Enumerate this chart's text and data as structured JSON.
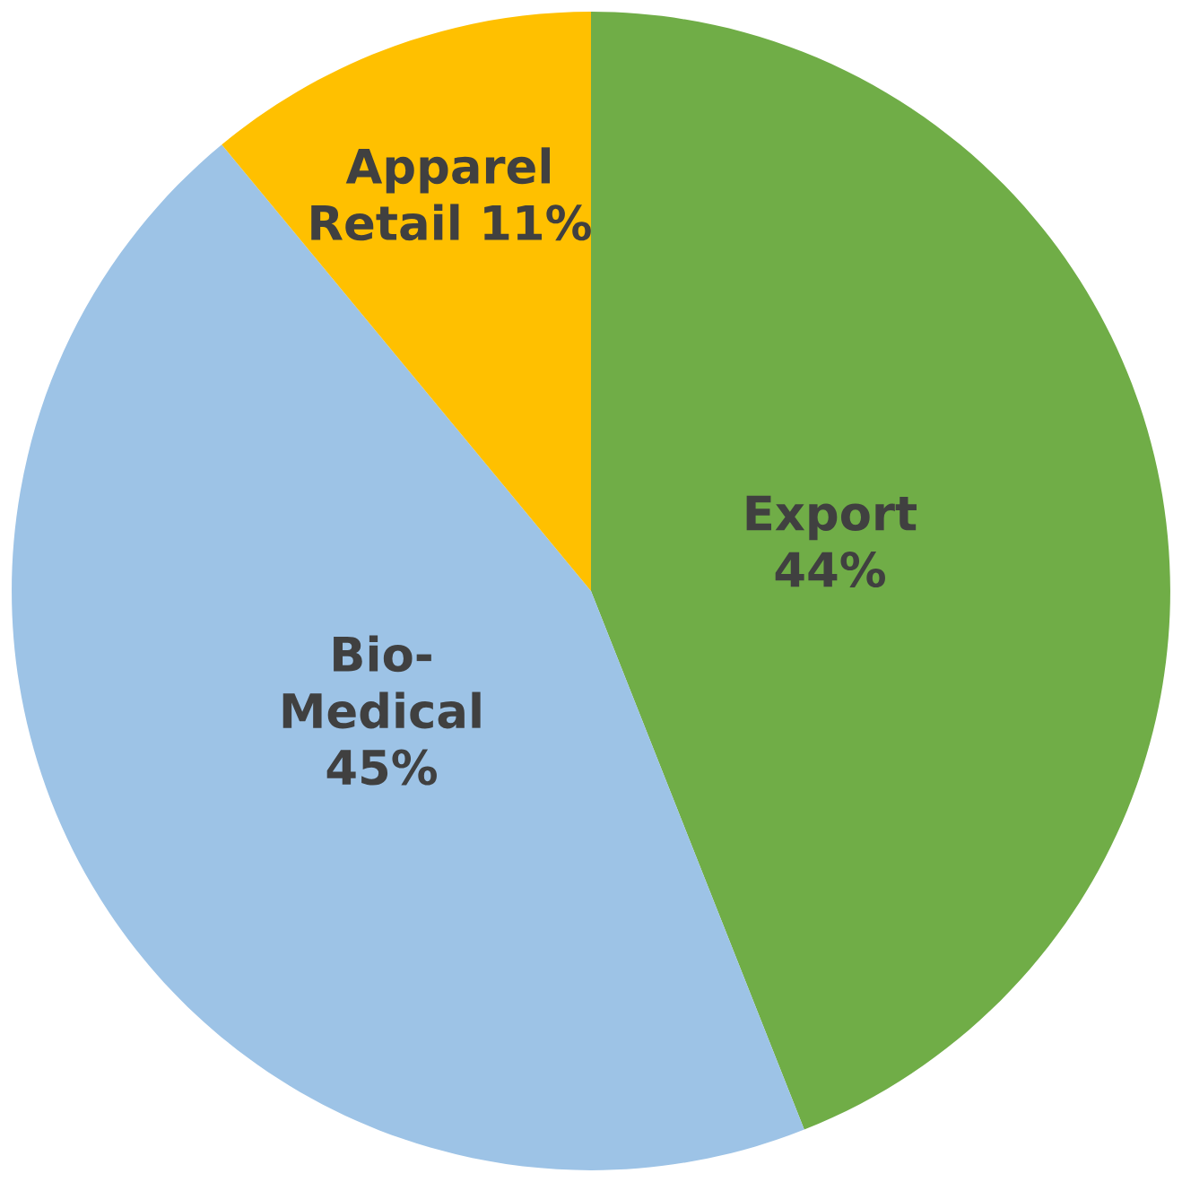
{
  "chart_data": {
    "type": "pie",
    "categories": [
      "Export",
      "Bio-\nMedical",
      "Apparel\nRetail"
    ],
    "values": [
      44,
      45,
      11
    ],
    "value_labels": [
      "44%",
      "45%",
      "11%"
    ],
    "colors": [
      "#70ad47",
      "#9dc3e6",
      "#ffc000"
    ]
  }
}
